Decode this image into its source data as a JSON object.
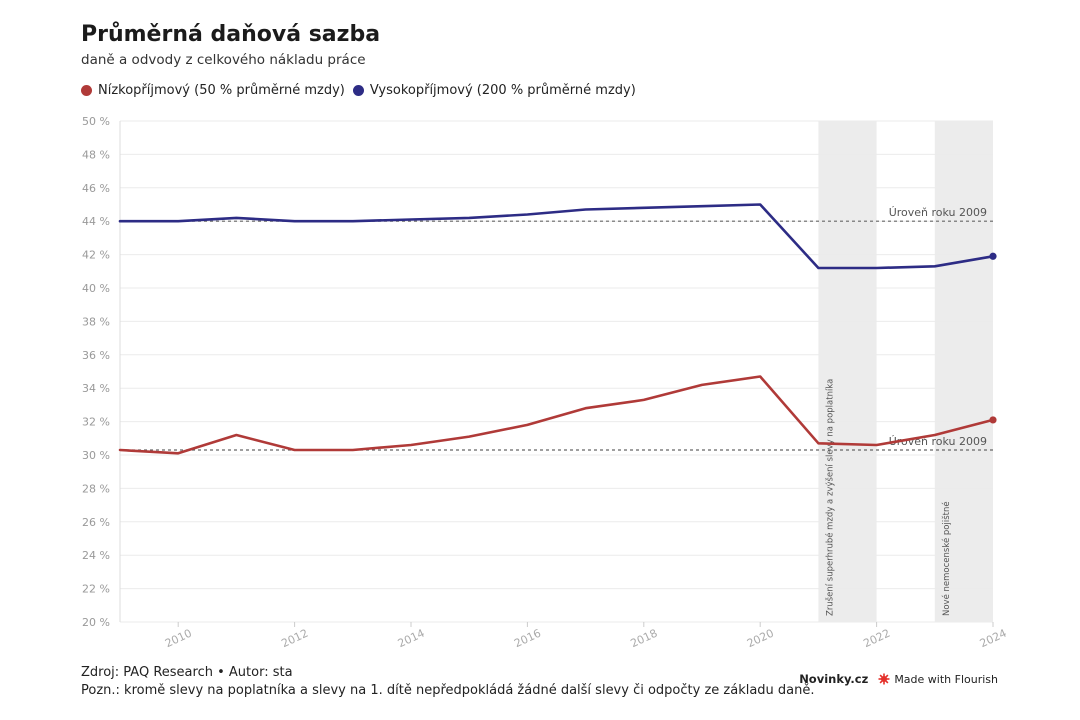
{
  "header": {
    "title": "Průměrná daňová sazba",
    "subtitle": "daně a odvody z celkového nákladu práce"
  },
  "footer": {
    "source": "Zdroj: PAQ Research • Autor: sta",
    "note": "Pozn.: kromě slevy na poplatníka a slevy na 1. dítě nepředpokládá žádné další slevy či odpočty ze základu daně."
  },
  "brand": {
    "site": "Novinky.cz",
    "made_with": "Made with Flourish",
    "icon": "flourish-icon",
    "icon_color": "#e4312b"
  },
  "chart_data": {
    "type": "line",
    "x": [
      2009,
      2010,
      2011,
      2012,
      2013,
      2014,
      2015,
      2016,
      2017,
      2018,
      2019,
      2020,
      2021,
      2022,
      2023,
      2024
    ],
    "series": [
      {
        "name": "Nízkopříjmový (50 % průměrné mzdy)",
        "color": "#b03a38",
        "values": [
          30.3,
          30.1,
          31.2,
          30.3,
          30.3,
          30.6,
          31.1,
          31.8,
          32.8,
          33.3,
          34.2,
          34.7,
          30.7,
          30.6,
          31.2,
          32.1
        ]
      },
      {
        "name": "Vysokopříjmový (200 % průměrné mzdy)",
        "color": "#2d2c85",
        "values": [
          44.0,
          44.0,
          44.2,
          44.0,
          44.0,
          44.1,
          44.2,
          44.4,
          44.7,
          44.8,
          44.9,
          45.0,
          41.2,
          41.2,
          41.3,
          41.9
        ]
      }
    ],
    "ylim": [
      20,
      50
    ],
    "xlim": [
      2009,
      2024
    ],
    "y_ticks": [
      20,
      22,
      24,
      26,
      28,
      30,
      32,
      34,
      36,
      38,
      40,
      42,
      44,
      46,
      48,
      50
    ],
    "y_tick_suffix": " %",
    "x_ticks": [
      2010,
      2012,
      2014,
      2016,
      2018,
      2020,
      2022,
      2024
    ],
    "grid": true,
    "legend_position": "top-left",
    "reference_lines": [
      {
        "value": 44.0,
        "label": "Úroveň roku 2009"
      },
      {
        "value": 30.3,
        "label": "Úroveň roku 2009"
      }
    ],
    "shaded_periods": [
      {
        "from": 2021,
        "to": 2022,
        "label": "Zrušení superhrubé mzdy a zvýšení slevy na poplatníka"
      },
      {
        "from": 2023,
        "to": 2024,
        "label": "Nové nemocenské pojištné"
      }
    ]
  }
}
